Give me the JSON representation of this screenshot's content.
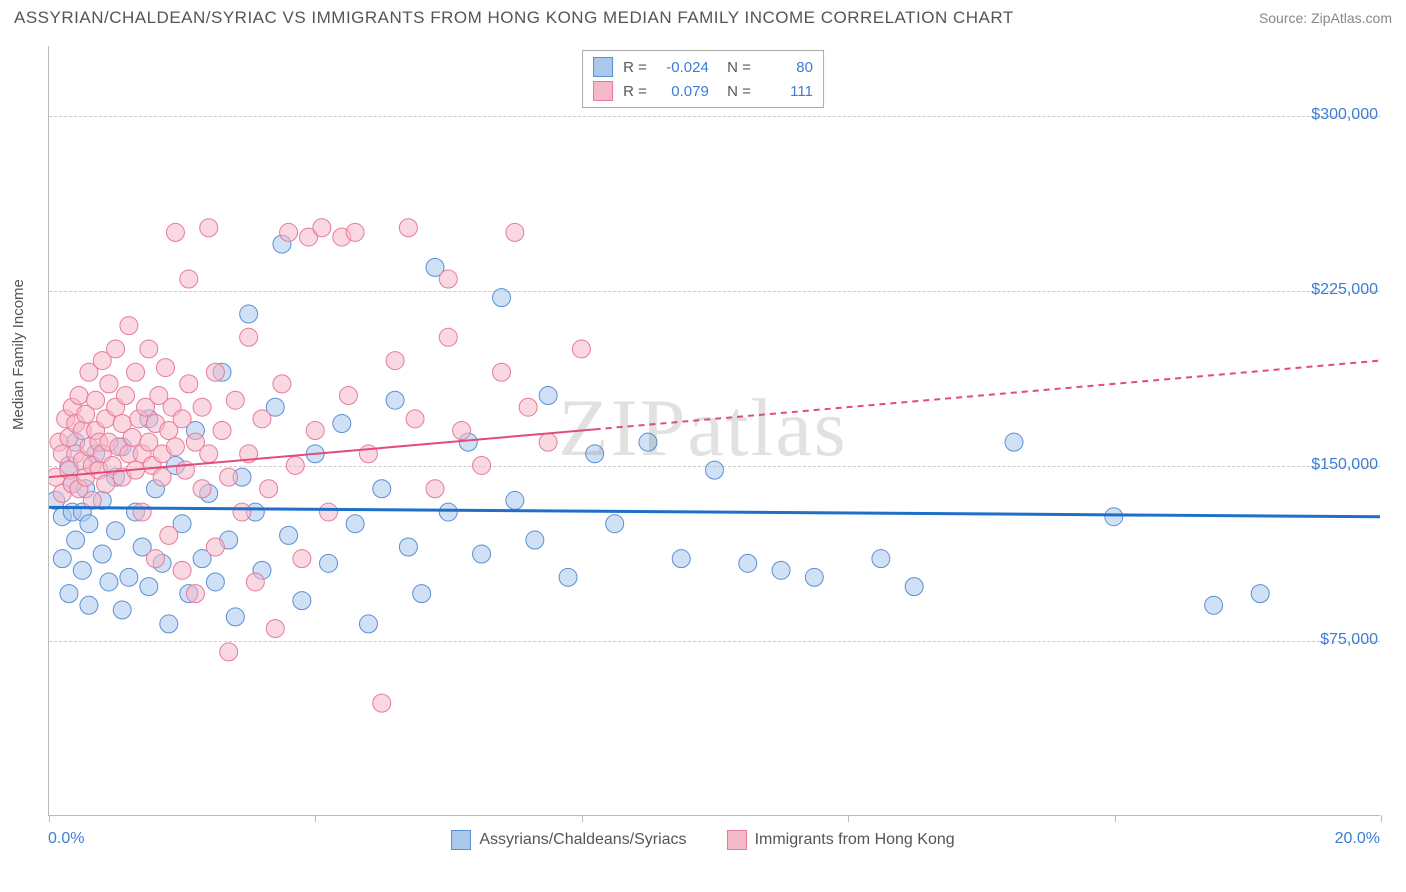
{
  "header": {
    "title": "ASSYRIAN/CHALDEAN/SYRIAC VS IMMIGRANTS FROM HONG KONG MEDIAN FAMILY INCOME CORRELATION CHART",
    "source": "Source: ZipAtlas.com"
  },
  "chart": {
    "type": "scatter",
    "ylabel": "Median Family Income",
    "xlim": [
      0,
      20
    ],
    "ylim": [
      0,
      330000
    ],
    "x_ticks": [
      0,
      4,
      8,
      12,
      16,
      20
    ],
    "x_tick_labels_shown": {
      "first": "0.0%",
      "last": "20.0%"
    },
    "y_gridlines": [
      75000,
      150000,
      225000,
      300000
    ],
    "y_tick_labels": [
      "$75,000",
      "$150,000",
      "$225,000",
      "$300,000"
    ],
    "grid_color": "#cccccc",
    "axis_color": "#bbbbbb",
    "background_color": "#ffffff",
    "watermark": "ZIPatlas",
    "series": [
      {
        "name": "Assyrians/Chaldeans/Syriacs",
        "color_fill": "#a9c8ec",
        "color_stroke": "#5a8fd6",
        "fill_opacity": 0.55,
        "marker_radius": 9,
        "R": "-0.024",
        "N": "80",
        "trend": {
          "x1": 0,
          "y1": 132000,
          "x2": 20,
          "y2": 128000,
          "solid_until_x": 20,
          "stroke": "#1f6fc9",
          "width": 3
        },
        "points": [
          [
            0.1,
            135000
          ],
          [
            0.2,
            128000
          ],
          [
            0.2,
            110000
          ],
          [
            0.3,
            150000
          ],
          [
            0.3,
            95000
          ],
          [
            0.35,
            130000
          ],
          [
            0.35,
            142000
          ],
          [
            0.4,
            118000
          ],
          [
            0.4,
            160000
          ],
          [
            0.5,
            130000
          ],
          [
            0.5,
            105000
          ],
          [
            0.55,
            140000
          ],
          [
            0.6,
            125000
          ],
          [
            0.6,
            90000
          ],
          [
            0.7,
            155000
          ],
          [
            0.8,
            112000
          ],
          [
            0.8,
            135000
          ],
          [
            0.9,
            100000
          ],
          [
            1.0,
            145000
          ],
          [
            1.0,
            122000
          ],
          [
            1.1,
            88000
          ],
          [
            1.1,
            158000
          ],
          [
            1.2,
            102000
          ],
          [
            1.3,
            130000
          ],
          [
            1.4,
            115000
          ],
          [
            1.5,
            170000
          ],
          [
            1.5,
            98000
          ],
          [
            1.6,
            140000
          ],
          [
            1.7,
            108000
          ],
          [
            1.8,
            82000
          ],
          [
            1.9,
            150000
          ],
          [
            2.0,
            125000
          ],
          [
            2.1,
            95000
          ],
          [
            2.2,
            165000
          ],
          [
            2.3,
            110000
          ],
          [
            2.4,
            138000
          ],
          [
            2.5,
            100000
          ],
          [
            2.6,
            190000
          ],
          [
            2.7,
            118000
          ],
          [
            2.8,
            85000
          ],
          [
            2.9,
            145000
          ],
          [
            3.0,
            215000
          ],
          [
            3.1,
            130000
          ],
          [
            3.2,
            105000
          ],
          [
            3.4,
            175000
          ],
          [
            3.5,
            245000
          ],
          [
            3.6,
            120000
          ],
          [
            3.8,
            92000
          ],
          [
            4.0,
            155000
          ],
          [
            4.2,
            108000
          ],
          [
            4.4,
            168000
          ],
          [
            4.6,
            125000
          ],
          [
            4.8,
            82000
          ],
          [
            5.0,
            140000
          ],
          [
            5.2,
            178000
          ],
          [
            5.4,
            115000
          ],
          [
            5.6,
            95000
          ],
          [
            5.8,
            235000
          ],
          [
            6.0,
            130000
          ],
          [
            6.3,
            160000
          ],
          [
            6.5,
            112000
          ],
          [
            6.8,
            222000
          ],
          [
            7.0,
            135000
          ],
          [
            7.3,
            118000
          ],
          [
            7.5,
            180000
          ],
          [
            7.8,
            102000
          ],
          [
            8.2,
            155000
          ],
          [
            8.5,
            125000
          ],
          [
            9.0,
            160000
          ],
          [
            9.5,
            110000
          ],
          [
            10.0,
            148000
          ],
          [
            10.5,
            108000
          ],
          [
            11.0,
            105000
          ],
          [
            11.5,
            102000
          ],
          [
            12.5,
            110000
          ],
          [
            13.0,
            98000
          ],
          [
            14.5,
            160000
          ],
          [
            16.0,
            128000
          ],
          [
            17.5,
            90000
          ],
          [
            18.2,
            95000
          ]
        ]
      },
      {
        "name": "Immigrants from Hong Kong",
        "color_fill": "#f5b8c9",
        "color_stroke": "#e77a9a",
        "fill_opacity": 0.55,
        "marker_radius": 9,
        "R": "0.079",
        "N": "111",
        "trend": {
          "x1": 0,
          "y1": 145000,
          "x2": 20,
          "y2": 195000,
          "solid_until_x": 8.2,
          "stroke": "#e24b7a",
          "width": 2
        },
        "points": [
          [
            0.1,
            145000
          ],
          [
            0.15,
            160000
          ],
          [
            0.2,
            138000
          ],
          [
            0.2,
            155000
          ],
          [
            0.25,
            170000
          ],
          [
            0.3,
            148000
          ],
          [
            0.3,
            162000
          ],
          [
            0.35,
            142000
          ],
          [
            0.35,
            175000
          ],
          [
            0.4,
            155000
          ],
          [
            0.4,
            168000
          ],
          [
            0.45,
            140000
          ],
          [
            0.45,
            180000
          ],
          [
            0.5,
            152000
          ],
          [
            0.5,
            165000
          ],
          [
            0.55,
            145000
          ],
          [
            0.55,
            172000
          ],
          [
            0.6,
            190000
          ],
          [
            0.6,
            158000
          ],
          [
            0.65,
            150000
          ],
          [
            0.65,
            135000
          ],
          [
            0.7,
            165000
          ],
          [
            0.7,
            178000
          ],
          [
            0.75,
            148000
          ],
          [
            0.75,
            160000
          ],
          [
            0.8,
            195000
          ],
          [
            0.8,
            155000
          ],
          [
            0.85,
            170000
          ],
          [
            0.85,
            142000
          ],
          [
            0.9,
            185000
          ],
          [
            0.9,
            160000
          ],
          [
            0.95,
            150000
          ],
          [
            1.0,
            175000
          ],
          [
            1.0,
            200000
          ],
          [
            1.05,
            158000
          ],
          [
            1.1,
            168000
          ],
          [
            1.1,
            145000
          ],
          [
            1.15,
            180000
          ],
          [
            1.2,
            155000
          ],
          [
            1.2,
            210000
          ],
          [
            1.25,
            162000
          ],
          [
            1.3,
            148000
          ],
          [
            1.3,
            190000
          ],
          [
            1.35,
            170000
          ],
          [
            1.4,
            155000
          ],
          [
            1.4,
            130000
          ],
          [
            1.45,
            175000
          ],
          [
            1.5,
            160000
          ],
          [
            1.5,
            200000
          ],
          [
            1.55,
            150000
          ],
          [
            1.6,
            110000
          ],
          [
            1.6,
            168000
          ],
          [
            1.65,
            180000
          ],
          [
            1.7,
            155000
          ],
          [
            1.7,
            145000
          ],
          [
            1.75,
            192000
          ],
          [
            1.8,
            165000
          ],
          [
            1.8,
            120000
          ],
          [
            1.85,
            175000
          ],
          [
            1.9,
            250000
          ],
          [
            1.9,
            158000
          ],
          [
            2.0,
            170000
          ],
          [
            2.0,
            105000
          ],
          [
            2.05,
            148000
          ],
          [
            2.1,
            185000
          ],
          [
            2.1,
            230000
          ],
          [
            2.2,
            160000
          ],
          [
            2.2,
            95000
          ],
          [
            2.3,
            175000
          ],
          [
            2.3,
            140000
          ],
          [
            2.4,
            252000
          ],
          [
            2.4,
            155000
          ],
          [
            2.5,
            190000
          ],
          [
            2.5,
            115000
          ],
          [
            2.6,
            165000
          ],
          [
            2.7,
            145000
          ],
          [
            2.7,
            70000
          ],
          [
            2.8,
            178000
          ],
          [
            2.9,
            130000
          ],
          [
            3.0,
            205000
          ],
          [
            3.0,
            155000
          ],
          [
            3.1,
            100000
          ],
          [
            3.2,
            170000
          ],
          [
            3.3,
            140000
          ],
          [
            3.4,
            80000
          ],
          [
            3.5,
            185000
          ],
          [
            3.6,
            250000
          ],
          [
            3.7,
            150000
          ],
          [
            3.8,
            110000
          ],
          [
            3.9,
            248000
          ],
          [
            4.0,
            165000
          ],
          [
            4.1,
            252000
          ],
          [
            4.2,
            130000
          ],
          [
            4.4,
            248000
          ],
          [
            4.5,
            180000
          ],
          [
            4.6,
            250000
          ],
          [
            4.8,
            155000
          ],
          [
            5.0,
            48000
          ],
          [
            5.2,
            195000
          ],
          [
            5.4,
            252000
          ],
          [
            5.5,
            170000
          ],
          [
            5.8,
            140000
          ],
          [
            6.0,
            205000
          ],
          [
            6.0,
            230000
          ],
          [
            6.2,
            165000
          ],
          [
            6.5,
            150000
          ],
          [
            6.8,
            190000
          ],
          [
            7.0,
            250000
          ],
          [
            7.2,
            175000
          ],
          [
            7.5,
            160000
          ],
          [
            8.0,
            200000
          ]
        ]
      }
    ],
    "legend_bottom": [
      {
        "label": "Assyrians/Chaldeans/Syriacs",
        "fill": "#a9c8ec",
        "stroke": "#5a8fd6"
      },
      {
        "label": "Immigrants from Hong Kong",
        "fill": "#f5b8c9",
        "stroke": "#e77a9a"
      }
    ]
  }
}
